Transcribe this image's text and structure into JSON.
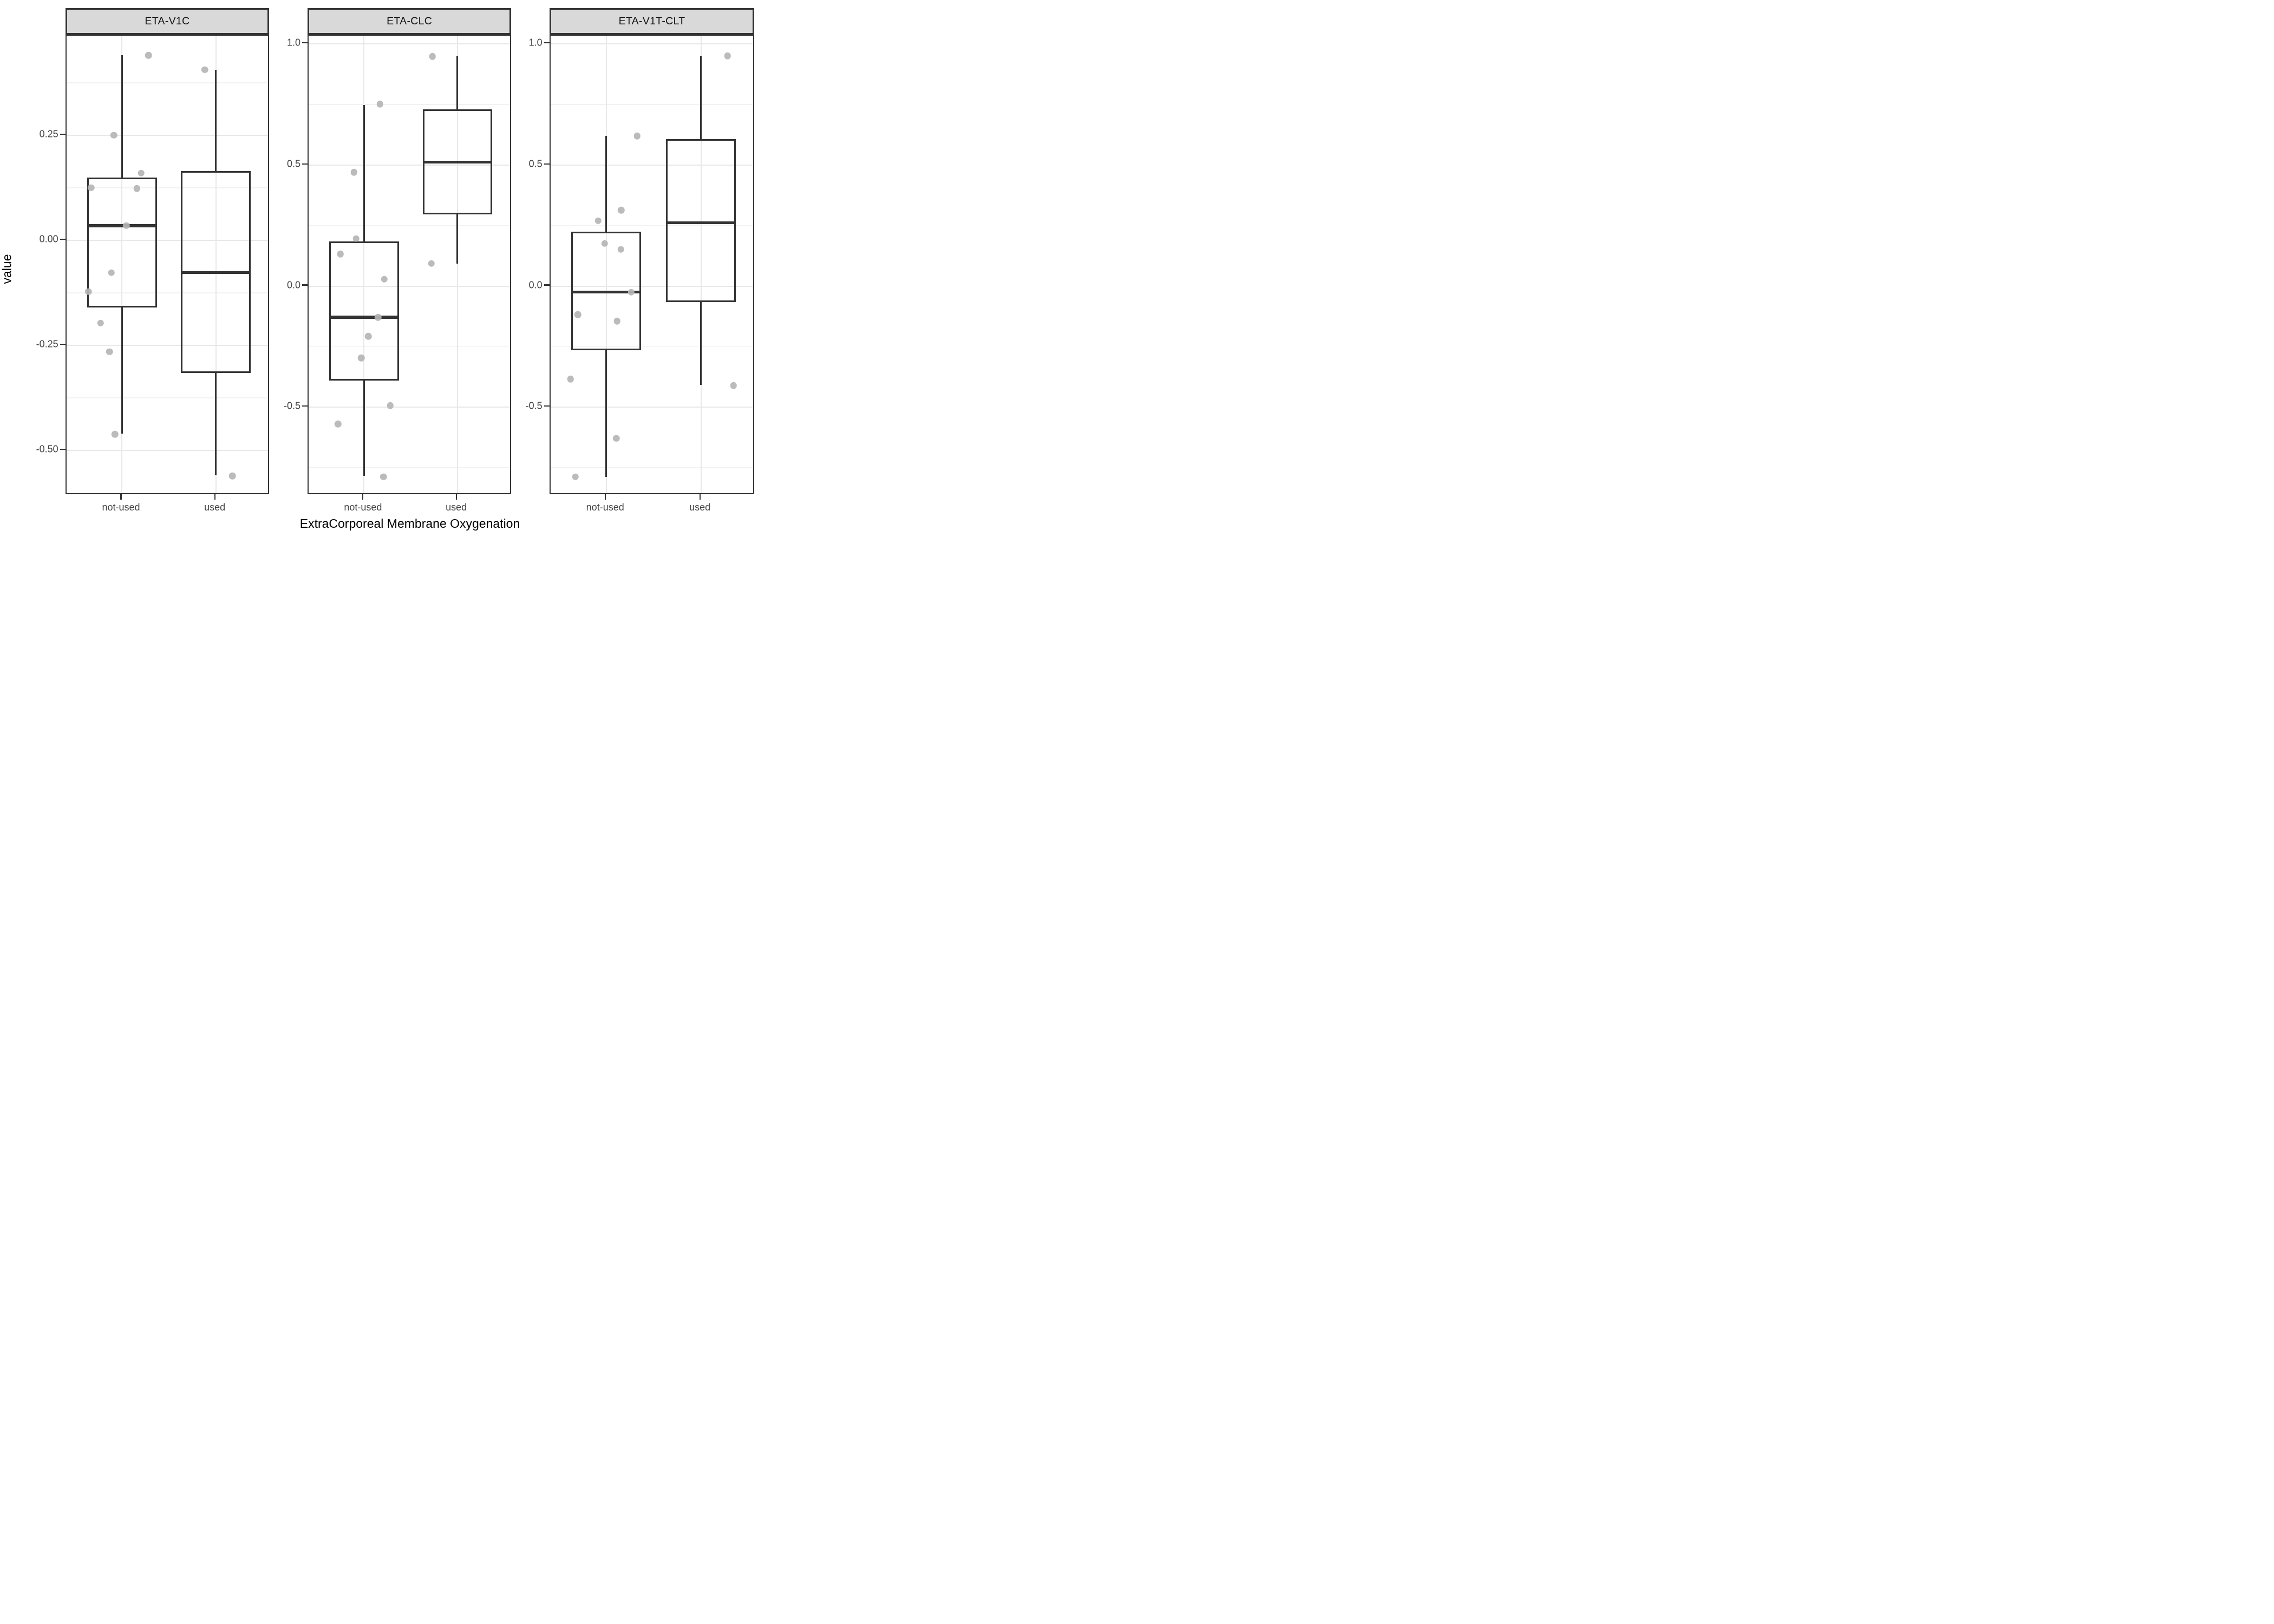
{
  "figure": {
    "y_axis_title": "value",
    "x_axis_title": "ExtraCorporeal Membrane Oxygenation"
  },
  "colors": {
    "strip_bg": "#D9D9D9",
    "strip_border": "#333333",
    "panel_border": "#333333",
    "box_stroke": "#333333",
    "grid_major": "#E8E8E8",
    "grid_minor": "#F2F2F2",
    "point_fill": "#B5B5B5",
    "tick_label": "#444444",
    "axis_title": "#000000"
  },
  "chart_data": {
    "type": "boxplot",
    "title": "",
    "xlabel": "ExtraCorporeal Membrane Oxygenation",
    "ylabel": "value",
    "facet_titles": [
      "ETA-V1C",
      "ETA-CLC",
      "ETA-V1T-CLT"
    ],
    "x_categories": [
      "not-used",
      "used"
    ],
    "grid": "major-and-minor-horizontal, major-vertical-at-categories",
    "legend_position": "none",
    "box_width_fraction": 0.341,
    "facets": [
      {
        "title": "ETA-V1C",
        "ylim": [
          -0.607,
          0.487
        ],
        "yticks": [
          {
            "value": 0.25,
            "label": "0.25"
          },
          {
            "value": 0.0,
            "label": "0.00"
          },
          {
            "value": -0.25,
            "label": "-0.25"
          },
          {
            "value": -0.5,
            "label": "-0.50"
          }
        ],
        "yminor": [
          0.375,
          0.125,
          -0.125,
          -0.375,
          -0.625
        ],
        "groups": [
          {
            "category": "not-used",
            "center": 0.273,
            "box": {
              "whisker_low": -0.46,
              "q1": -0.16,
              "median": 0.035,
              "q3": 0.15,
              "whisker_high": 0.44
            },
            "points": [
              {
                "x": 0.403,
                "y": 0.44
              },
              {
                "x": 0.232,
                "y": 0.25
              },
              {
                "x": 0.367,
                "y": 0.16
              },
              {
                "x": 0.121,
                "y": 0.125
              },
              {
                "x": 0.345,
                "y": 0.123
              },
              {
                "x": 0.294,
                "y": 0.035
              },
              {
                "x": 0.22,
                "y": -0.077
              },
              {
                "x": 0.108,
                "y": -0.122
              },
              {
                "x": 0.168,
                "y": -0.197
              },
              {
                "x": 0.211,
                "y": -0.265
              },
              {
                "x": 0.238,
                "y": -0.462
              }
            ]
          },
          {
            "category": "used",
            "center": 0.733,
            "box": {
              "whisker_low": -0.559,
              "q1": -0.316,
              "median": -0.077,
              "q3": 0.165,
              "whisker_high": 0.406
            },
            "points": [
              {
                "x": 0.679,
                "y": 0.406
              },
              {
                "x": 0.814,
                "y": -0.561
              }
            ]
          }
        ]
      },
      {
        "title": "ETA-CLC",
        "ylim": [
          -0.864,
          1.034
        ],
        "yticks": [
          {
            "value": 1.0,
            "label": "1.0"
          },
          {
            "value": 0.5,
            "label": "0.5"
          },
          {
            "value": 0.0,
            "label": "0.0"
          },
          {
            "value": -0.5,
            "label": "-0.5"
          }
        ],
        "yminor": [
          0.75,
          0.25,
          -0.25,
          -0.75
        ],
        "groups": [
          {
            "category": "not-used",
            "center": 0.272,
            "box": {
              "whisker_low": -0.783,
              "q1": -0.391,
              "median": -0.129,
              "q3": 0.185,
              "whisker_high": 0.748
            },
            "points": [
              {
                "x": 0.35,
                "y": 0.752
              },
              {
                "x": 0.222,
                "y": 0.47
              },
              {
                "x": 0.233,
                "y": 0.196
              },
              {
                "x": 0.156,
                "y": 0.132
              },
              {
                "x": 0.371,
                "y": 0.028
              },
              {
                "x": 0.341,
                "y": -0.129
              },
              {
                "x": 0.293,
                "y": -0.207
              },
              {
                "x": 0.259,
                "y": -0.297
              },
              {
                "x": 0.401,
                "y": -0.493
              },
              {
                "x": 0.144,
                "y": -0.569
              },
              {
                "x": 0.367,
                "y": -0.787
              }
            ]
          },
          {
            "category": "used",
            "center": 0.73,
            "box": {
              "whisker_low": 0.093,
              "q1": 0.296,
              "median": 0.512,
              "q3": 0.73,
              "whisker_high": 0.951
            },
            "points": [
              {
                "x": 0.608,
                "y": 0.949
              },
              {
                "x": 0.602,
                "y": 0.093
              }
            ]
          }
        ]
      },
      {
        "title": "ETA-V1T-CLT",
        "ylim": [
          -0.864,
          1.034
        ],
        "yticks": [
          {
            "value": 1.0,
            "label": "1.0"
          },
          {
            "value": 0.5,
            "label": "0.5"
          },
          {
            "value": 0.0,
            "label": "0.0"
          },
          {
            "value": -0.5,
            "label": "-0.5"
          }
        ],
        "yminor": [
          0.75,
          0.25,
          -0.25,
          -0.75
        ],
        "groups": [
          {
            "category": "not-used",
            "center": 0.272,
            "box": {
              "whisker_low": -0.787,
              "q1": -0.265,
              "median": -0.025,
              "q3": 0.225,
              "whisker_high": 0.62
            },
            "points": [
              {
                "x": 0.423,
                "y": 0.62
              },
              {
                "x": 0.345,
                "y": 0.314
              },
              {
                "x": 0.233,
                "y": 0.27
              },
              {
                "x": 0.264,
                "y": 0.176
              },
              {
                "x": 0.343,
                "y": 0.151
              },
              {
                "x": 0.393,
                "y": -0.025
              },
              {
                "x": 0.134,
                "y": -0.118
              },
              {
                "x": 0.325,
                "y": -0.145
              },
              {
                "x": 0.098,
                "y": -0.384
              },
              {
                "x": 0.321,
                "y": -0.629
              },
              {
                "x": 0.122,
                "y": -0.787
              }
            ]
          },
          {
            "category": "used",
            "center": 0.734,
            "box": {
              "whisker_low": -0.408,
              "q1": -0.066,
              "median": 0.262,
              "q3": 0.607,
              "whisker_high": 0.951
            },
            "points": [
              {
                "x": 0.863,
                "y": 0.951
              },
              {
                "x": 0.893,
                "y": -0.411
              }
            ]
          }
        ]
      }
    ]
  }
}
